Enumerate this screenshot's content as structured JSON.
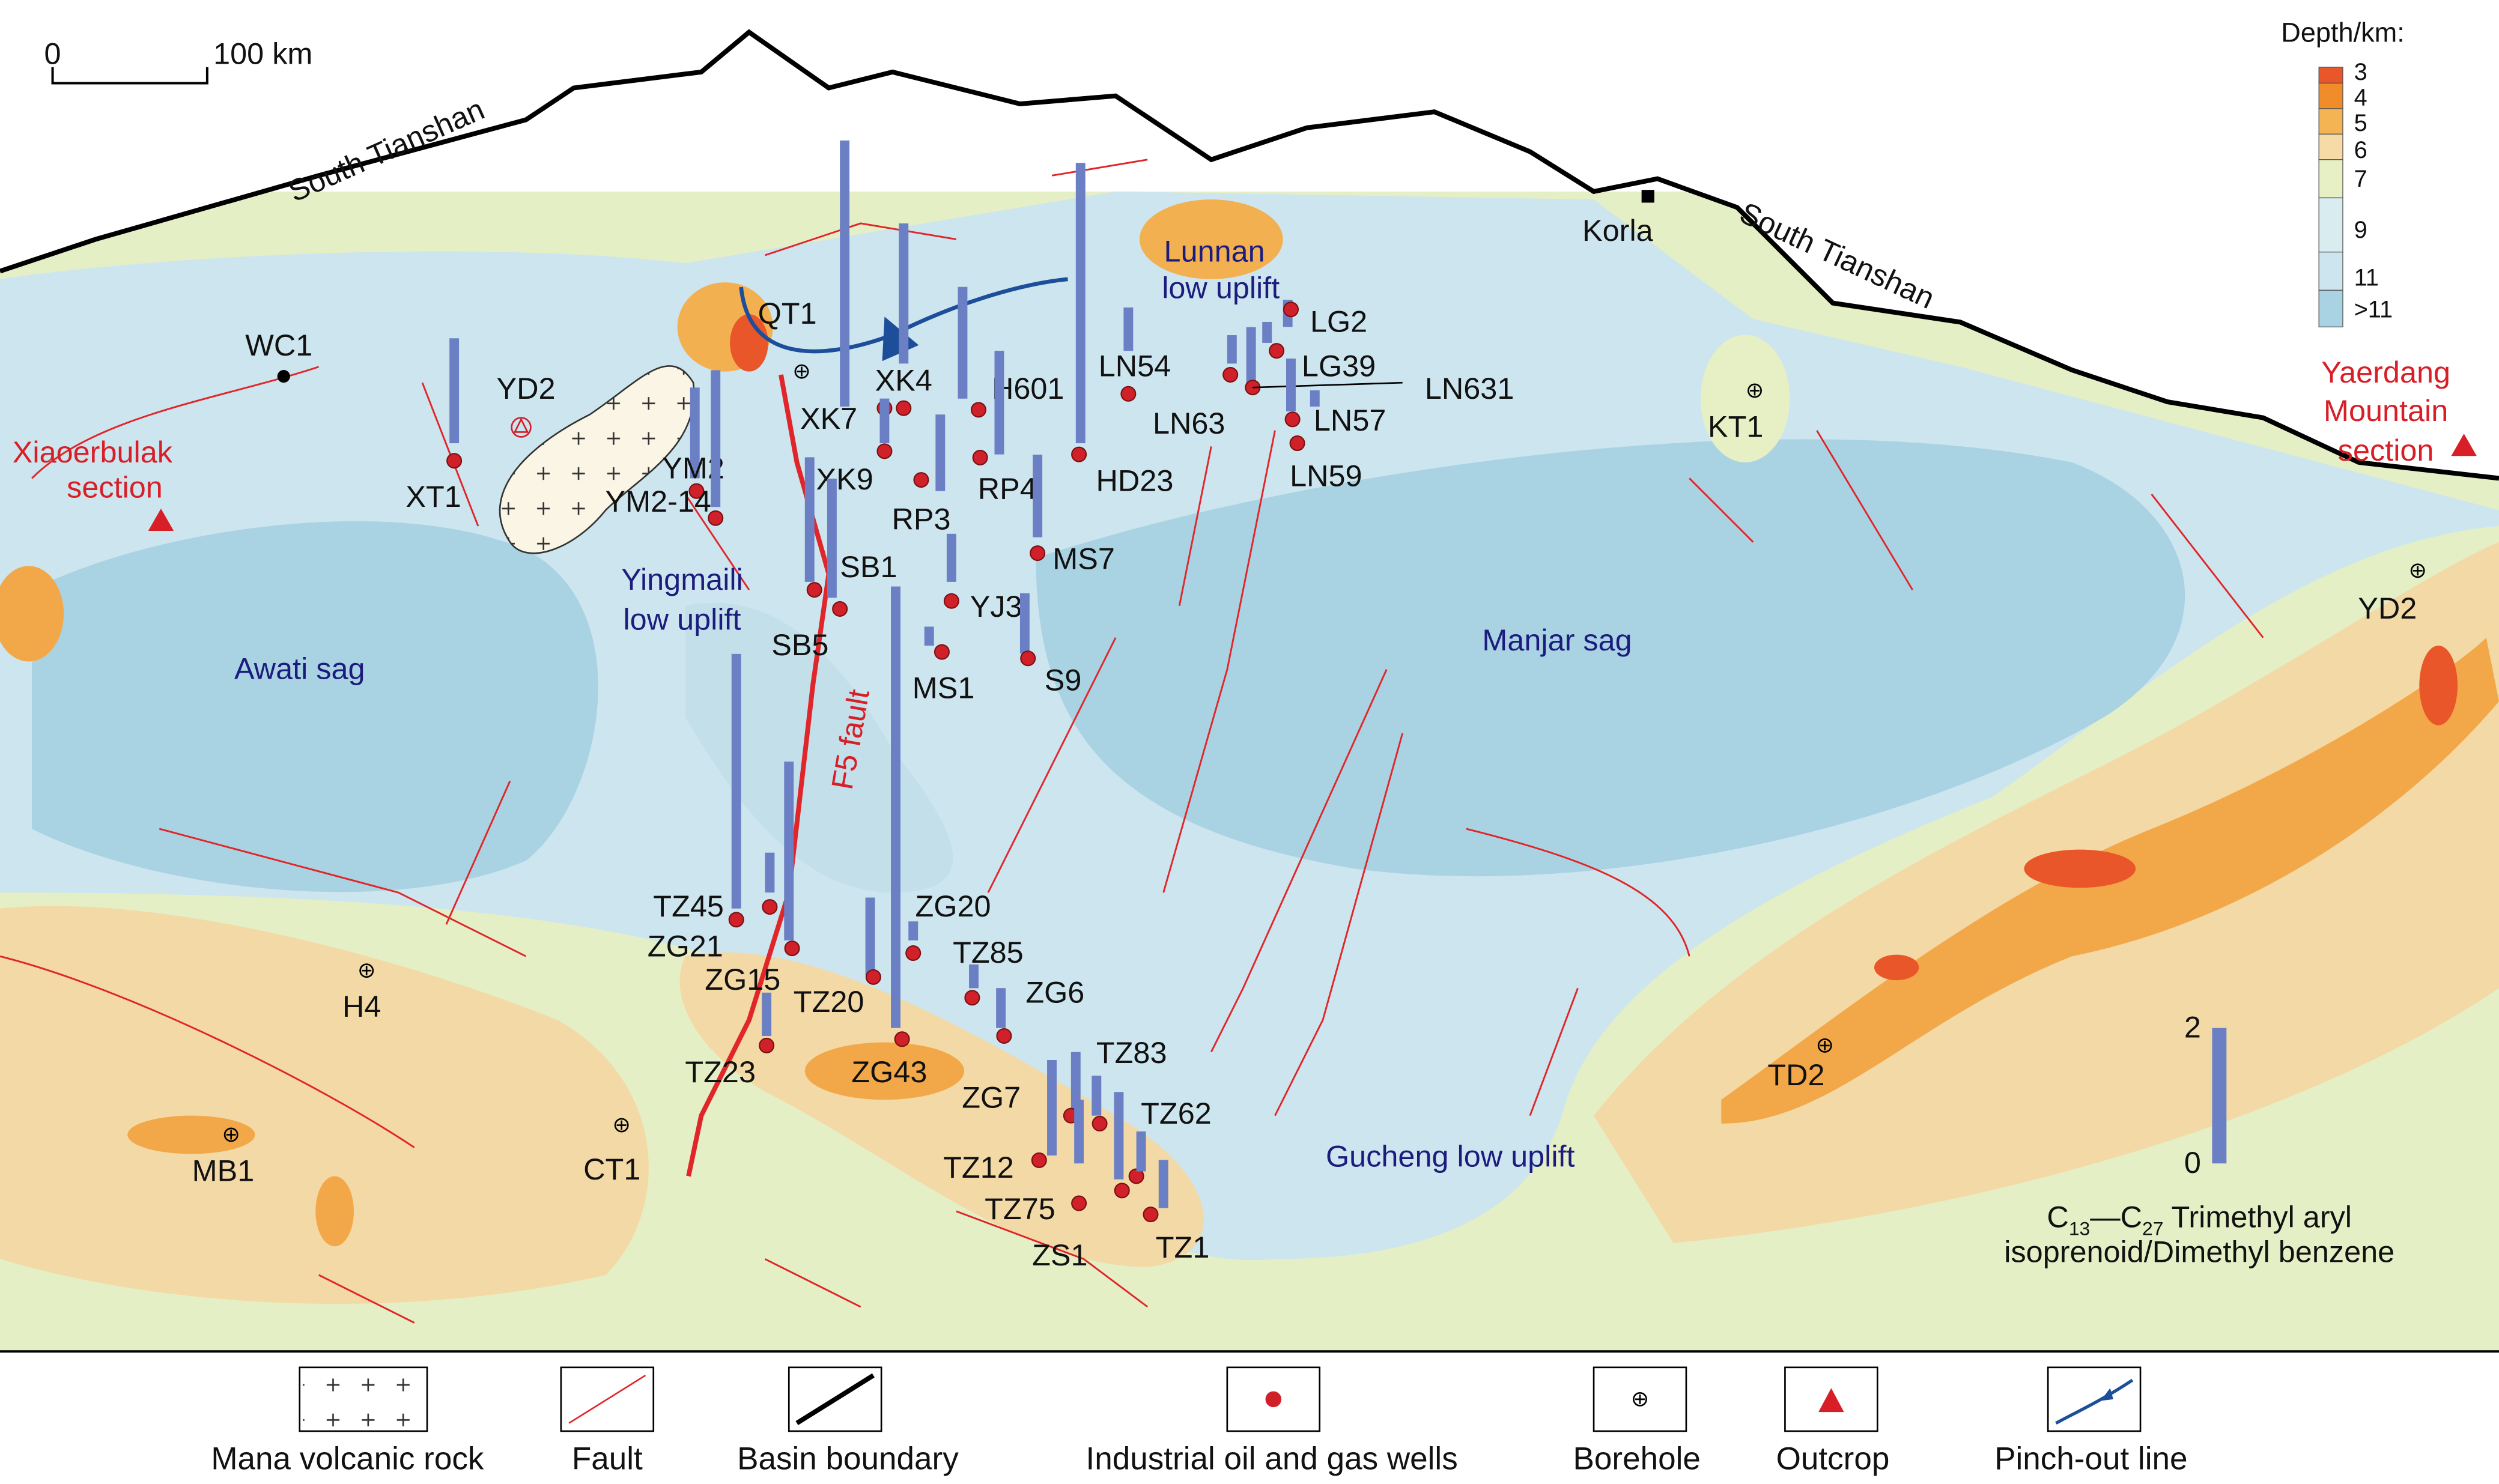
{
  "scale_bar": {
    "start": "0",
    "end": "100 km"
  },
  "depth_legend": {
    "title": "Depth/km:",
    "levels": [
      {
        "label": "3",
        "color": "#e8562a"
      },
      {
        "label": "4",
        "color": "#f08c2a"
      },
      {
        "label": "5",
        "color": "#f5b453"
      },
      {
        "label": "6",
        "color": "#f6dba6"
      },
      {
        "label": "7",
        "color": "#e7f0c4"
      },
      {
        "label": "9",
        "color": "#d9edf1"
      },
      {
        "label": "11",
        "color": "#cde5ee"
      },
      {
        "label": ">11",
        "color": "#a9d3e3"
      }
    ]
  },
  "places": {
    "south_tianshan_west": "South Tianshan",
    "south_tianshan_east": "South Tianshan",
    "korla": "Korla",
    "wc1": "WC1",
    "yd2_outcrop": "YD2",
    "xiaoerbulak": [
      "Xiaoerbulak",
      "section"
    ],
    "yaerdang": [
      "Yaerdang",
      "Mountain",
      "section"
    ]
  },
  "regions": {
    "awati": "Awati sag",
    "manjar": "Manjar sag",
    "yingmaili": [
      "Yingmaili",
      "low uplift"
    ],
    "lunnan": [
      "Lunnan",
      "low uplift"
    ],
    "gucheng": "Gucheng low uplift",
    "f5": "F5 fault"
  },
  "boreholes": [
    "QT1",
    "KT1",
    "YD2",
    "H4",
    "MB1",
    "CT1",
    "TD2"
  ],
  "wells": [
    {
      "name": "XT1",
      "value": 1.55
    },
    {
      "name": "YM2",
      "value": 1.34
    },
    {
      "name": "YM2-14",
      "value": 2.02
    },
    {
      "name": "XK7",
      "value": 3.93
    },
    {
      "name": "XK4",
      "value": 2.07
    },
    {
      "name": "XK9",
      "value": 0.66
    },
    {
      "name": "SB1",
      "value": 1.84
    },
    {
      "name": "SB5",
      "value": 1.76
    },
    {
      "name": "RP3",
      "value": 1.13
    },
    {
      "name": "H601",
      "value": 1.65
    },
    {
      "name": "RP4",
      "value": 1.53
    },
    {
      "name": "MS7",
      "value": 1.22
    },
    {
      "name": "YJ3",
      "value": 0.71
    },
    {
      "name": "MS1",
      "value": 0.28
    },
    {
      "name": "S9",
      "value": 0.89
    },
    {
      "name": "HD23",
      "value": 4.14
    },
    {
      "name": "LN54",
      "value": 0.64
    },
    {
      "name": "LN63",
      "value": 0.42
    },
    {
      "name": "LN631",
      "value": 0.82
    },
    {
      "name": "LG2",
      "value": 0.4
    },
    {
      "name": "LG39",
      "value": 0.31
    },
    {
      "name": "LN57",
      "value": 0.78
    },
    {
      "name": "LN59",
      "value": 0.24
    },
    {
      "name": "TZ45",
      "value": 3.76
    },
    {
      "name": "ZG21",
      "value": 0.59
    },
    {
      "name": "ZG15",
      "value": 2.64
    },
    {
      "name": "ZG20",
      "value": 0.28
    },
    {
      "name": "TZ20",
      "value": 1.15
    },
    {
      "name": "ZG43",
      "value": 6.52
    },
    {
      "name": "TZ23",
      "value": 0.64
    },
    {
      "name": "TZ85",
      "value": 0.35
    },
    {
      "name": "ZG6",
      "value": 0.59
    },
    {
      "name": "ZG7",
      "value": 0.94
    },
    {
      "name": "TZ12",
      "value": 1.41
    },
    {
      "name": "TZ83",
      "value": 0.59
    },
    {
      "name": "TZ75",
      "value": 0.94
    },
    {
      "name": "TZ62",
      "value": 1.29
    },
    {
      "name": "ZS1",
      "value": 0.59
    },
    {
      "name": "TZ1",
      "value": 0.71
    }
  ],
  "bar_legend": {
    "ticks": [
      0,
      2
    ],
    "color": "#6b7fc5",
    "caption": {
      "c1": "C",
      "sub1": "13",
      "mid": "—C",
      "sub2": "27",
      "rest": " Trimethyl aryl",
      "line2": "isoprenoid/Dimethyl benzene"
    }
  },
  "legend": [
    "Mana volcanic rock",
    "Fault",
    "Basin boundary",
    "Industrial oil and gas wells",
    "Borehole",
    "Outcrop",
    "Pinch-out line"
  ]
}
